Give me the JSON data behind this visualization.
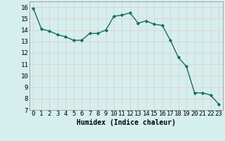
{
  "x": [
    0,
    1,
    2,
    3,
    4,
    5,
    6,
    7,
    8,
    9,
    10,
    11,
    12,
    13,
    14,
    15,
    16,
    17,
    18,
    19,
    20,
    21,
    22,
    23
  ],
  "y": [
    15.9,
    14.1,
    13.9,
    13.6,
    13.4,
    13.1,
    13.1,
    13.7,
    13.7,
    14.0,
    15.2,
    15.3,
    15.5,
    14.6,
    14.8,
    14.5,
    14.4,
    13.1,
    11.6,
    10.8,
    8.5,
    8.5,
    8.3,
    7.5
  ],
  "title": "",
  "xlabel": "Humidex (Indice chaleur)",
  "ylabel": "",
  "xlim": [
    -0.5,
    23.5
  ],
  "ylim": [
    7,
    16.5
  ],
  "yticks": [
    7,
    8,
    9,
    10,
    11,
    12,
    13,
    14,
    15,
    16
  ],
  "xticks": [
    0,
    1,
    2,
    3,
    4,
    5,
    6,
    7,
    8,
    9,
    10,
    11,
    12,
    13,
    14,
    15,
    16,
    17,
    18,
    19,
    20,
    21,
    22,
    23
  ],
  "line_color": "#1a6b5e",
  "marker": "D",
  "marker_size": 2.2,
  "bg_color": "#d4efed",
  "grid_color": "#e8c8c8",
  "xlabel_fontsize": 7,
  "tick_fontsize": 6.5,
  "line_width": 1.0
}
